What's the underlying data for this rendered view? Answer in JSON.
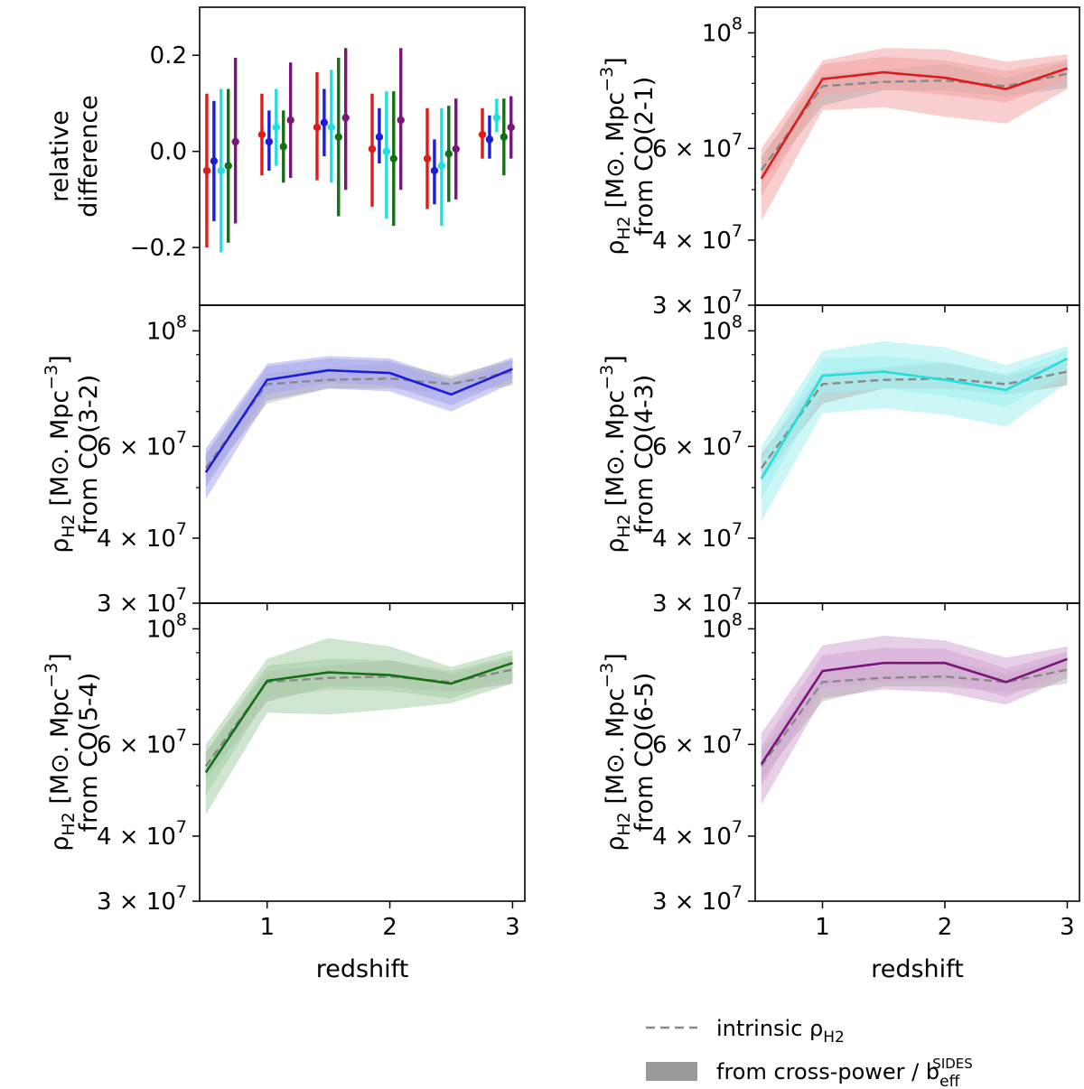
{
  "chart_data": {
    "type": "line",
    "x": [
      0.5,
      1.0,
      1.5,
      2.0,
      2.5,
      3.0
    ],
    "xlabel": "redshift",
    "xlim": [
      0.45,
      3.1
    ],
    "xticks": [
      1,
      2,
      3
    ],
    "ylim_log": [
      30000000.0,
      112000000.0
    ],
    "yticks": [
      {
        "value": 100000000.0,
        "label": "10",
        "sup": "8"
      },
      {
        "value": 60000000.0,
        "label": "6 × 10",
        "sup": "7"
      },
      {
        "value": 40000000.0,
        "label": "4 × 10",
        "sup": "7"
      },
      {
        "value": 30000000.0,
        "label": "3 × 10",
        "sup": "7"
      }
    ],
    "ylabel_prefix": "ρ",
    "ylabel_sub": "H2",
    "ylabel_units": "[M⊙. Mpc",
    "ylabel_units_sup": "−3",
    "ylabel_units_close": "]",
    "intrinsic": {
      "values": [
        54500000.0,
        79000000.0,
        80500000.0,
        81000000.0,
        79000000.0,
        83500000.0
      ],
      "band_low": [
        51500000.0,
        72500000.0,
        77500000.0,
        77500000.0,
        75500000.0,
        78500000.0
      ],
      "band_high": [
        58000000.0,
        83000000.0,
        85000000.0,
        87000000.0,
        82000000.0,
        88000000.0
      ],
      "color": "#888888"
    },
    "panels": [
      {
        "label": "from CO(2-1)",
        "color": "#dd1c1c",
        "fill": "#f4a6a6",
        "values": [
          52500000.0,
          81500000.0,
          84000000.0,
          82000000.0,
          78000000.0,
          85500000.0
        ],
        "inner_low": [
          48500000.0,
          76000000.0,
          78000000.0,
          76000000.0,
          73500000.0,
          81500000.0
        ],
        "inner_high": [
          57000000.0,
          87000000.0,
          90000000.0,
          88500000.0,
          84500000.0,
          89000000.0
        ],
        "outer_low": [
          43500000.0,
          71000000.0,
          72000000.0,
          69000000.0,
          67000000.0,
          78000000.0
        ],
        "outer_high": [
          60000000.0,
          88500000.0,
          93500000.0,
          93000000.0,
          88000000.0,
          91000000.0
        ]
      },
      {
        "label": "from CO(3-2)",
        "color": "#1c1cdd",
        "fill": "#a9a9ee",
        "values": [
          53500000.0,
          80500000.0,
          84000000.0,
          83000000.0,
          75500000.0,
          84500000.0
        ],
        "inner_low": [
          50000000.0,
          75500000.0,
          79500000.0,
          78500000.0,
          72000000.0,
          81000000.0
        ],
        "inner_high": [
          58000000.0,
          85500000.0,
          88500000.0,
          87500000.0,
          79500000.0,
          88000000.0
        ],
        "outer_low": [
          47500000.0,
          73500000.0,
          77500000.0,
          76500000.0,
          70000000.0,
          79500000.0
        ],
        "outer_high": [
          59500000.0,
          86500000.0,
          89500000.0,
          88500000.0,
          81000000.0,
          89000000.0
        ]
      },
      {
        "label": "from CO(4-3)",
        "color": "#22dede",
        "fill": "#a4f0f0",
        "values": [
          52000000.0,
          82000000.0,
          83500000.0,
          80500000.0,
          77000000.0,
          88500000.0
        ],
        "inner_low": [
          47500000.0,
          76000000.0,
          77500000.0,
          75000000.0,
          71500000.0,
          83000000.0
        ],
        "inner_high": [
          57000000.0,
          88500000.0,
          89500000.0,
          87000000.0,
          82500000.0,
          92000000.0
        ],
        "outer_low": [
          43000000.0,
          69500000.0,
          71000000.0,
          69000000.0,
          65500000.0,
          79500000.0
        ],
        "outer_high": [
          60000000.0,
          91500000.0,
          95500000.0,
          93000000.0,
          86000000.0,
          93500000.0
        ]
      },
      {
        "label": "from CO(5-4)",
        "color": "#156f15",
        "fill": "#a8d0a8",
        "values": [
          53000000.0,
          79500000.0,
          82500000.0,
          81500000.0,
          78500000.0,
          86000000.0
        ],
        "inner_low": [
          48000000.0,
          73500000.0,
          76500000.0,
          76000000.0,
          73500000.0,
          81000000.0
        ],
        "inner_high": [
          58000000.0,
          85000000.0,
          87500000.0,
          87000000.0,
          83000000.0,
          89000000.0
        ],
        "outer_low": [
          44000000.0,
          69000000.0,
          68500000.0,
          70000000.0,
          72000000.0,
          78500000.0
        ],
        "outer_high": [
          60000000.0,
          87500000.0,
          96000000.0,
          92500000.0,
          84500000.0,
          91000000.0
        ]
      },
      {
        "label": "from CO(6-5)",
        "color": "#7a157a",
        "fill": "#d6a8d6",
        "values": [
          55000000.0,
          83000000.0,
          86000000.0,
          86000000.0,
          79000000.0,
          87500000.0
        ],
        "inner_low": [
          50000000.0,
          77000000.0,
          79000000.0,
          79500000.0,
          74000000.0,
          83000000.0
        ],
        "inner_high": [
          59500000.0,
          89000000.0,
          92000000.0,
          91500000.0,
          84000000.0,
          90500000.0
        ],
        "outer_low": [
          46000000.0,
          73500000.0,
          76500000.0,
          75500000.0,
          71500000.0,
          80500000.0
        ],
        "outer_high": [
          63000000.0,
          93000000.0,
          97000000.0,
          95000000.0,
          88000000.0,
          92500000.0
        ]
      }
    ],
    "relative_difference": {
      "ylabel": [
        "relative",
        "difference"
      ],
      "ylim": [
        -0.32,
        0.3
      ],
      "yticks": [
        {
          "value": 0.2,
          "label": "0.2"
        },
        {
          "value": 0.0,
          "label": "0.0"
        },
        {
          "value": -0.2,
          "label": "−0.2"
        }
      ],
      "group_centers": [
        1,
        2,
        3,
        4,
        5,
        6
      ],
      "offsets": [
        -0.32,
        -0.19,
        -0.06,
        0.07,
        0.2
      ],
      "series": [
        {
          "name": "CO(2-1)",
          "color": "#dd1c1c",
          "values": [
            -0.04,
            0.035,
            0.05,
            0.005,
            -0.015,
            0.035
          ],
          "low": [
            -0.2,
            -0.05,
            -0.06,
            -0.115,
            -0.12,
            -0.015
          ],
          "high": [
            0.12,
            0.12,
            0.165,
            0.12,
            0.09,
            0.09
          ]
        },
        {
          "name": "CO(3-2)",
          "color": "#1c1cdd",
          "values": [
            -0.02,
            0.02,
            0.06,
            0.03,
            -0.04,
            0.025
          ],
          "low": [
            -0.145,
            -0.04,
            -0.01,
            -0.025,
            -0.11,
            -0.015
          ],
          "high": [
            0.105,
            0.085,
            0.13,
            0.09,
            0.025,
            0.075
          ]
        },
        {
          "name": "CO(4-3)",
          "color": "#22dede",
          "values": [
            -0.04,
            0.05,
            0.05,
            0.0,
            -0.03,
            0.07
          ],
          "low": [
            -0.21,
            -0.03,
            -0.065,
            -0.14,
            -0.155,
            0.04
          ],
          "high": [
            0.13,
            0.13,
            0.17,
            0.125,
            0.09,
            0.11
          ]
        },
        {
          "name": "CO(5-4)",
          "color": "#156f15",
          "values": [
            -0.03,
            0.01,
            0.03,
            -0.015,
            -0.005,
            0.03
          ],
          "low": [
            -0.19,
            -0.065,
            -0.135,
            -0.155,
            -0.105,
            -0.05
          ],
          "high": [
            0.13,
            0.085,
            0.195,
            0.125,
            0.095,
            0.11
          ]
        },
        {
          "name": "CO(6-5)",
          "color": "#7a157a",
          "values": [
            0.02,
            0.065,
            0.07,
            0.065,
            0.005,
            0.05
          ],
          "low": [
            -0.15,
            -0.055,
            -0.08,
            -0.08,
            -0.1,
            -0.015
          ],
          "high": [
            0.195,
            0.185,
            0.215,
            0.215,
            0.11,
            0.115
          ]
        }
      ]
    },
    "legend": {
      "position": "bottom-right",
      "intrinsic_label": "intrinsic ρ",
      "intrinsic_sub": "H2",
      "band_label": "from cross-power / b",
      "band_sub": "eff",
      "band_sup": "SIDES"
    }
  }
}
